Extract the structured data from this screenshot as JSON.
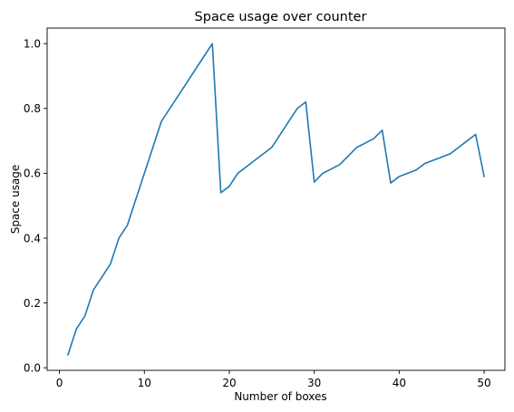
{
  "chart_data": {
    "type": "line",
    "title": "Space usage over counter",
    "xlabel": "Number of boxes",
    "ylabel": "Space usage",
    "xlim": [
      -1.45,
      52.45
    ],
    "ylim": [
      -0.008,
      1.048
    ],
    "xticks": [
      0,
      10,
      20,
      30,
      40,
      50
    ],
    "yticks": [
      0.0,
      0.2,
      0.4,
      0.6,
      0.8,
      1.0
    ],
    "xtick_labels": [
      "0",
      "10",
      "20",
      "30",
      "40",
      "50"
    ],
    "ytick_labels": [
      "0.0",
      "0.2",
      "0.4",
      "0.6",
      "0.8",
      "1.0"
    ],
    "grid": false,
    "line_color": "#1f77b4",
    "series": [
      {
        "x": [
          1,
          2,
          3,
          4,
          5,
          6,
          7,
          8,
          9,
          10,
          11,
          12,
          13,
          14,
          15,
          16,
          17,
          18,
          19,
          20,
          21,
          22,
          23,
          24,
          25,
          26,
          27,
          28,
          29,
          30,
          31,
          32,
          33,
          34,
          35,
          36,
          37,
          38,
          39,
          40,
          41,
          42,
          43,
          44,
          45,
          46,
          47,
          48,
          49,
          50
        ],
        "y": [
          0.04,
          0.12,
          0.16,
          0.24,
          0.28,
          0.32,
          0.4,
          0.44,
          0.52,
          0.6,
          0.68,
          0.76,
          0.8,
          0.84,
          0.88,
          0.92,
          0.96,
          1.0,
          0.54,
          0.56,
          0.6,
          0.62,
          0.64,
          0.66,
          0.68,
          0.72,
          0.76,
          0.8,
          0.82,
          0.573,
          0.6,
          0.613,
          0.627,
          0.653,
          0.68,
          0.693,
          0.707,
          0.733,
          0.57,
          0.59,
          0.6,
          0.61,
          0.63,
          0.64,
          0.65,
          0.66,
          0.68,
          0.7,
          0.72,
          0.59
        ]
      }
    ]
  }
}
